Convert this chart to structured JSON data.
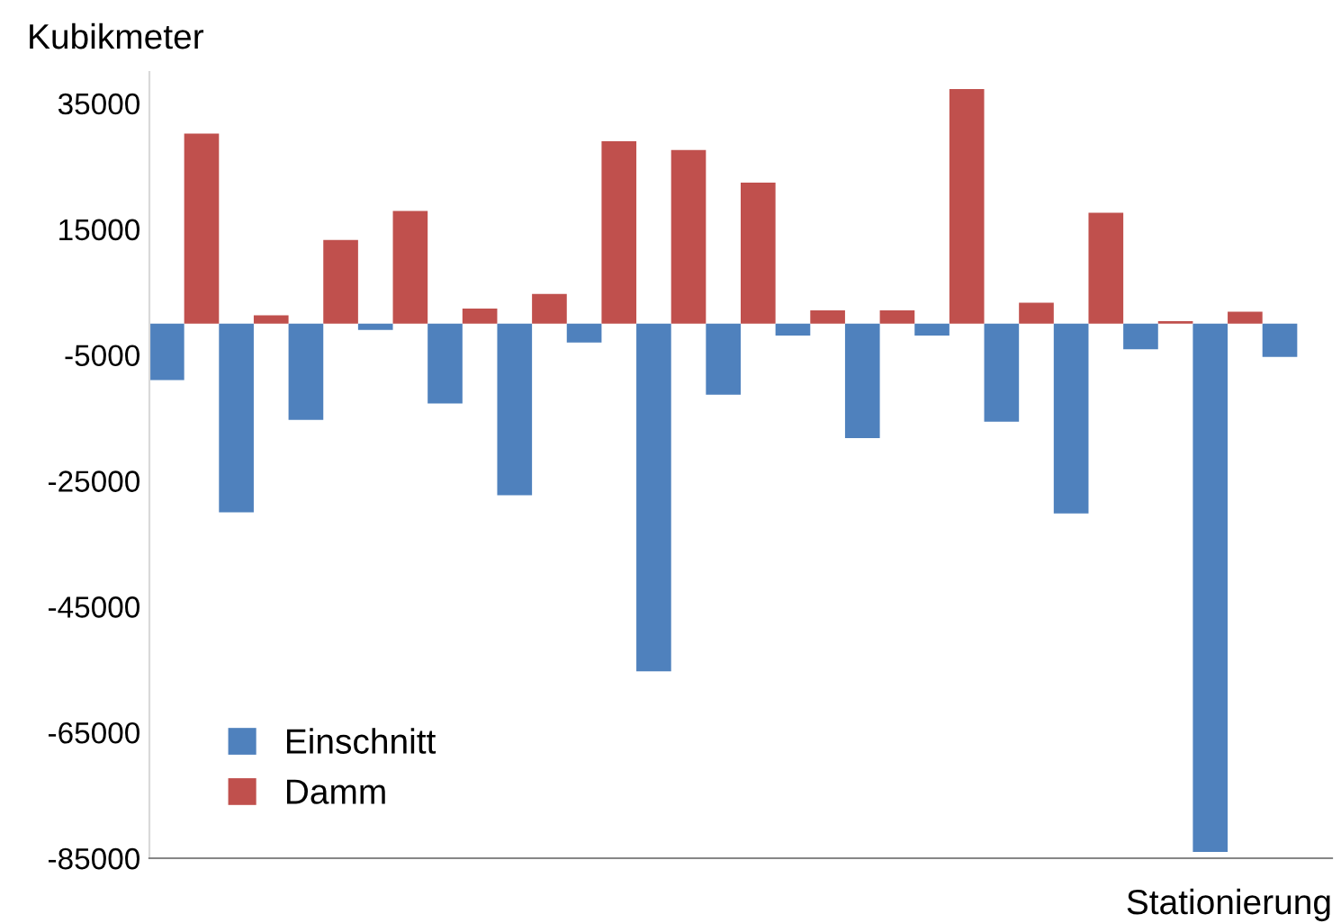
{
  "chart_data": {
    "type": "bar",
    "ylabel": "Kubikmeter",
    "xlabel": "Stationierung",
    "categories": [
      null,
      null,
      null,
      null,
      null,
      null,
      null,
      null,
      null,
      null,
      null,
      null,
      null,
      null,
      null,
      null,
      null
    ],
    "series": [
      {
        "name": "Einschnitt",
        "color": "#4f81bd",
        "values": [
          -9000,
          -30000,
          -15300,
          -1000,
          -12700,
          -27300,
          -3000,
          -55300,
          -11300,
          -1900,
          -18200,
          -1900,
          -15600,
          -30200,
          -4100,
          -84000,
          -5300
        ]
      },
      {
        "name": "Damm",
        "color": "#c0504d",
        "values": [
          30200,
          1300,
          13300,
          17900,
          2400,
          4700,
          29000,
          27600,
          22400,
          2100,
          2100,
          37300,
          3300,
          17600,
          400,
          1900,
          null
        ]
      }
    ],
    "ylim": [
      -85000,
      40000
    ],
    "yticks": [
      35000,
      15000,
      -5000,
      -25000,
      -45000,
      -65000,
      -85000
    ],
    "grid": false,
    "legend": "bottom left"
  }
}
